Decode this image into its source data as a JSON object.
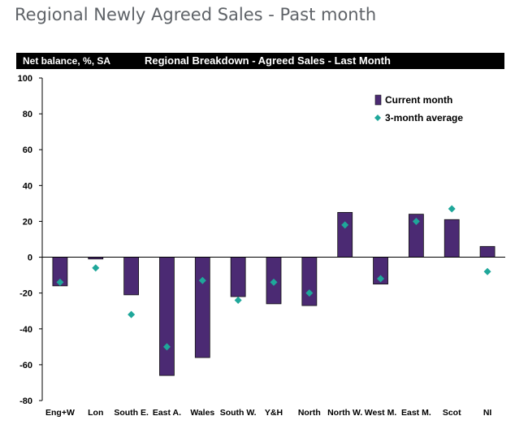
{
  "page": {
    "title": "Regional Newly Agreed Sales - Past month"
  },
  "header": {
    "left_label": "Net balance, %, SA",
    "chart_title": "Regional Breakdown - Agreed Sales - Last Month"
  },
  "chart_data": {
    "type": "bar",
    "title": "Regional Breakdown - Agreed Sales - Last Month",
    "ylabel": "Net balance, %, SA",
    "xlabel": "",
    "ylim": [
      -80,
      100
    ],
    "yticks": [
      100,
      80,
      60,
      40,
      20,
      0,
      -20,
      -40,
      -60,
      -80
    ],
    "categories": [
      "Eng+W",
      "Lon",
      "South E.",
      "East A.",
      "Wales",
      "South W.",
      "Y&H",
      "North",
      "North W.",
      "West M.",
      "East M.",
      "Scot",
      "NI"
    ],
    "series": [
      {
        "name": "Current month",
        "kind": "bar",
        "color": "#4b2a73",
        "values": [
          -16,
          -1,
          -21,
          -66,
          -56,
          -22,
          -26,
          -27,
          25,
          -15,
          24,
          21,
          6
        ]
      },
      {
        "name": "3-month average",
        "kind": "marker",
        "color": "#1fa79a",
        "values": [
          -14,
          -6,
          -32,
          -50,
          -13,
          -24,
          -14,
          -20,
          18,
          -12,
          20,
          27,
          -8
        ]
      }
    ],
    "legend": "top-right"
  }
}
